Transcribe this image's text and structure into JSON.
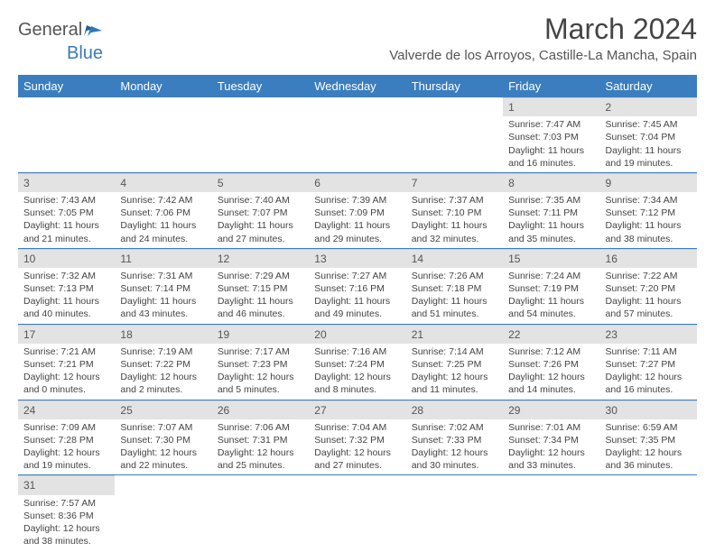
{
  "logo": {
    "general": "General",
    "blue": "Blue"
  },
  "title": "March 2024",
  "location": "Valverde de los Arroyos, Castille-La Mancha, Spain",
  "colors": {
    "header_bg": "#3a7ebf",
    "header_fg": "#ffffff",
    "daynum_bg": "#e3e3e3",
    "row_divider": "#3a7ebf",
    "text": "#444444",
    "logo_blue": "#3a7ab8"
  },
  "day_headers": [
    "Sunday",
    "Monday",
    "Tuesday",
    "Wednesday",
    "Thursday",
    "Friday",
    "Saturday"
  ],
  "weeks": [
    [
      null,
      null,
      null,
      null,
      null,
      {
        "n": "1",
        "sr": "Sunrise: 7:47 AM",
        "ss": "Sunset: 7:03 PM",
        "dl": "Daylight: 11 hours and 16 minutes."
      },
      {
        "n": "2",
        "sr": "Sunrise: 7:45 AM",
        "ss": "Sunset: 7:04 PM",
        "dl": "Daylight: 11 hours and 19 minutes."
      }
    ],
    [
      {
        "n": "3",
        "sr": "Sunrise: 7:43 AM",
        "ss": "Sunset: 7:05 PM",
        "dl": "Daylight: 11 hours and 21 minutes."
      },
      {
        "n": "4",
        "sr": "Sunrise: 7:42 AM",
        "ss": "Sunset: 7:06 PM",
        "dl": "Daylight: 11 hours and 24 minutes."
      },
      {
        "n": "5",
        "sr": "Sunrise: 7:40 AM",
        "ss": "Sunset: 7:07 PM",
        "dl": "Daylight: 11 hours and 27 minutes."
      },
      {
        "n": "6",
        "sr": "Sunrise: 7:39 AM",
        "ss": "Sunset: 7:09 PM",
        "dl": "Daylight: 11 hours and 29 minutes."
      },
      {
        "n": "7",
        "sr": "Sunrise: 7:37 AM",
        "ss": "Sunset: 7:10 PM",
        "dl": "Daylight: 11 hours and 32 minutes."
      },
      {
        "n": "8",
        "sr": "Sunrise: 7:35 AM",
        "ss": "Sunset: 7:11 PM",
        "dl": "Daylight: 11 hours and 35 minutes."
      },
      {
        "n": "9",
        "sr": "Sunrise: 7:34 AM",
        "ss": "Sunset: 7:12 PM",
        "dl": "Daylight: 11 hours and 38 minutes."
      }
    ],
    [
      {
        "n": "10",
        "sr": "Sunrise: 7:32 AM",
        "ss": "Sunset: 7:13 PM",
        "dl": "Daylight: 11 hours and 40 minutes."
      },
      {
        "n": "11",
        "sr": "Sunrise: 7:31 AM",
        "ss": "Sunset: 7:14 PM",
        "dl": "Daylight: 11 hours and 43 minutes."
      },
      {
        "n": "12",
        "sr": "Sunrise: 7:29 AM",
        "ss": "Sunset: 7:15 PM",
        "dl": "Daylight: 11 hours and 46 minutes."
      },
      {
        "n": "13",
        "sr": "Sunrise: 7:27 AM",
        "ss": "Sunset: 7:16 PM",
        "dl": "Daylight: 11 hours and 49 minutes."
      },
      {
        "n": "14",
        "sr": "Sunrise: 7:26 AM",
        "ss": "Sunset: 7:18 PM",
        "dl": "Daylight: 11 hours and 51 minutes."
      },
      {
        "n": "15",
        "sr": "Sunrise: 7:24 AM",
        "ss": "Sunset: 7:19 PM",
        "dl": "Daylight: 11 hours and 54 minutes."
      },
      {
        "n": "16",
        "sr": "Sunrise: 7:22 AM",
        "ss": "Sunset: 7:20 PM",
        "dl": "Daylight: 11 hours and 57 minutes."
      }
    ],
    [
      {
        "n": "17",
        "sr": "Sunrise: 7:21 AM",
        "ss": "Sunset: 7:21 PM",
        "dl": "Daylight: 12 hours and 0 minutes."
      },
      {
        "n": "18",
        "sr": "Sunrise: 7:19 AM",
        "ss": "Sunset: 7:22 PM",
        "dl": "Daylight: 12 hours and 2 minutes."
      },
      {
        "n": "19",
        "sr": "Sunrise: 7:17 AM",
        "ss": "Sunset: 7:23 PM",
        "dl": "Daylight: 12 hours and 5 minutes."
      },
      {
        "n": "20",
        "sr": "Sunrise: 7:16 AM",
        "ss": "Sunset: 7:24 PM",
        "dl": "Daylight: 12 hours and 8 minutes."
      },
      {
        "n": "21",
        "sr": "Sunrise: 7:14 AM",
        "ss": "Sunset: 7:25 PM",
        "dl": "Daylight: 12 hours and 11 minutes."
      },
      {
        "n": "22",
        "sr": "Sunrise: 7:12 AM",
        "ss": "Sunset: 7:26 PM",
        "dl": "Daylight: 12 hours and 14 minutes."
      },
      {
        "n": "23",
        "sr": "Sunrise: 7:11 AM",
        "ss": "Sunset: 7:27 PM",
        "dl": "Daylight: 12 hours and 16 minutes."
      }
    ],
    [
      {
        "n": "24",
        "sr": "Sunrise: 7:09 AM",
        "ss": "Sunset: 7:28 PM",
        "dl": "Daylight: 12 hours and 19 minutes."
      },
      {
        "n": "25",
        "sr": "Sunrise: 7:07 AM",
        "ss": "Sunset: 7:30 PM",
        "dl": "Daylight: 12 hours and 22 minutes."
      },
      {
        "n": "26",
        "sr": "Sunrise: 7:06 AM",
        "ss": "Sunset: 7:31 PM",
        "dl": "Daylight: 12 hours and 25 minutes."
      },
      {
        "n": "27",
        "sr": "Sunrise: 7:04 AM",
        "ss": "Sunset: 7:32 PM",
        "dl": "Daylight: 12 hours and 27 minutes."
      },
      {
        "n": "28",
        "sr": "Sunrise: 7:02 AM",
        "ss": "Sunset: 7:33 PM",
        "dl": "Daylight: 12 hours and 30 minutes."
      },
      {
        "n": "29",
        "sr": "Sunrise: 7:01 AM",
        "ss": "Sunset: 7:34 PM",
        "dl": "Daylight: 12 hours and 33 minutes."
      },
      {
        "n": "30",
        "sr": "Sunrise: 6:59 AM",
        "ss": "Sunset: 7:35 PM",
        "dl": "Daylight: 12 hours and 36 minutes."
      }
    ],
    [
      {
        "n": "31",
        "sr": "Sunrise: 7:57 AM",
        "ss": "Sunset: 8:36 PM",
        "dl": "Daylight: 12 hours and 38 minutes."
      },
      null,
      null,
      null,
      null,
      null,
      null
    ]
  ]
}
